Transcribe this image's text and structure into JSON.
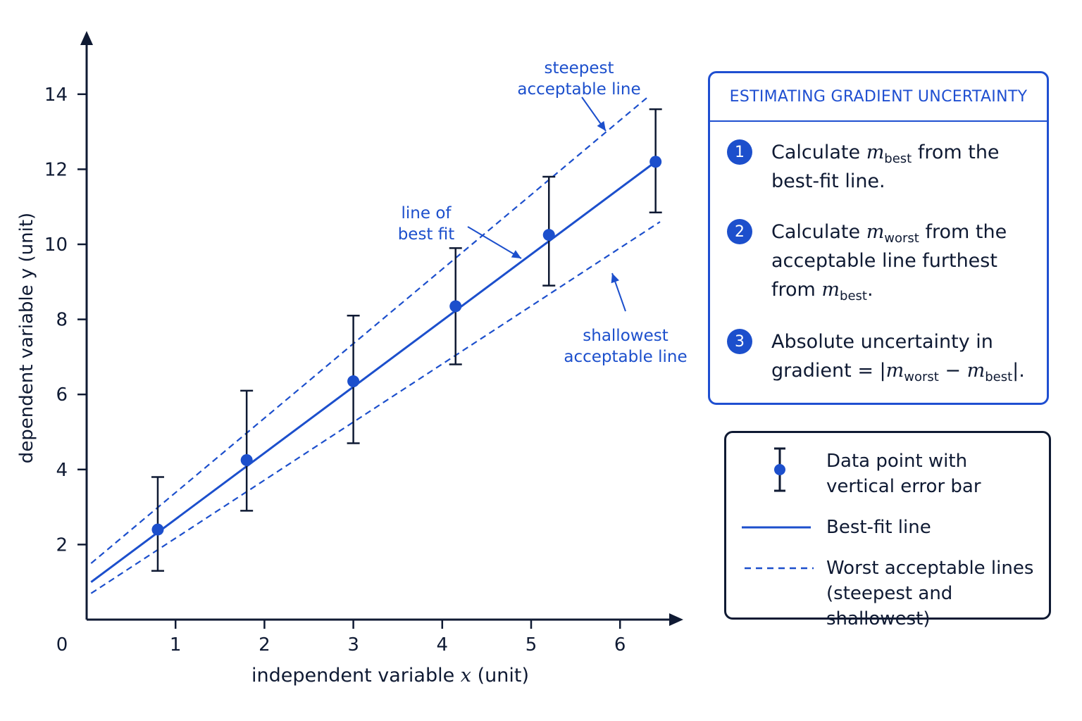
{
  "chart_data": {
    "type": "scatter",
    "xlabel_parts": [
      "independent  variable ",
      "x",
      " (unit)"
    ],
    "ylabel": "dependent variable y (unit)",
    "origin_label": "0",
    "xlim": [
      0,
      6.8
    ],
    "ylim": [
      0,
      15
    ],
    "x_ticks": [
      1,
      2,
      3,
      4,
      5,
      6
    ],
    "y_ticks": [
      2,
      4,
      6,
      8,
      10,
      12,
      14
    ],
    "points": [
      {
        "x": 0.8,
        "y": 2.4,
        "yerr_low": 1.3,
        "yerr_high": 3.8
      },
      {
        "x": 1.8,
        "y": 4.25,
        "yerr_low": 2.9,
        "yerr_high": 6.1
      },
      {
        "x": 3.0,
        "y": 6.35,
        "yerr_low": 4.7,
        "yerr_high": 8.1
      },
      {
        "x": 4.15,
        "y": 8.35,
        "yerr_low": 6.8,
        "yerr_high": 9.9
      },
      {
        "x": 5.2,
        "y": 10.25,
        "yerr_low": 8.9,
        "yerr_high": 11.8
      },
      {
        "x": 6.4,
        "y": 12.2,
        "yerr_low": 10.85,
        "yerr_high": 13.6
      }
    ],
    "lines": [
      {
        "name": "Best-fit line",
        "style": "solid",
        "from": [
          0.05,
          1.0
        ],
        "to": [
          6.4,
          12.2
        ]
      },
      {
        "name": "steepest acceptable line",
        "style": "dashed",
        "from": [
          0.05,
          1.5
        ],
        "to": [
          6.3,
          13.9
        ]
      },
      {
        "name": "shallowest acceptable line",
        "style": "dashed",
        "from": [
          0.05,
          0.7
        ],
        "to": [
          6.45,
          10.6
        ]
      }
    ],
    "annotations": [
      {
        "name": "steepest",
        "lines": [
          "steepest",
          "acceptable line"
        ]
      },
      {
        "name": "best",
        "lines": [
          "line of",
          "best fit"
        ]
      },
      {
        "name": "shallowest",
        "lines": [
          "shallowest",
          "acceptable line"
        ]
      }
    ]
  },
  "info_panel": {
    "title": "ESTIMATING GRADIENT UNCERTAINTY",
    "steps": [
      {
        "number": "1",
        "l1_a": "Calculate ",
        "l1_m": "m",
        "l1_sub": "best",
        "l1_b": " from the",
        "l2": "best-fit line."
      },
      {
        "number": "2",
        "l1_a": "Calculate ",
        "l1_m": "m",
        "l1_sub": "worst",
        "l1_b": " from the",
        "l2": "acceptable line furthest",
        "l3_a": "from ",
        "l3_m": "m",
        "l3_sub": "best",
        "l3_b": "."
      },
      {
        "number": "3",
        "l1": "Absolute uncertainty in",
        "l2_a": "gradient = |",
        "l2_m1": "m",
        "l2_sub1": "worst",
        "l2_op": " − ",
        "l2_m2": "m",
        "l2_sub2": "best",
        "l2_b": "|."
      }
    ]
  },
  "legend": {
    "items": [
      {
        "lines": [
          "Data point with",
          "vertical error bar"
        ]
      },
      {
        "lines": [
          "Best-fit line"
        ]
      },
      {
        "lines": [
          "Worst acceptable lines",
          "(steepest and shallowest)"
        ]
      }
    ]
  },
  "colors": {
    "accent": "#1c4fcc",
    "ink": "#0f1a33",
    "background": "#ffffff"
  }
}
